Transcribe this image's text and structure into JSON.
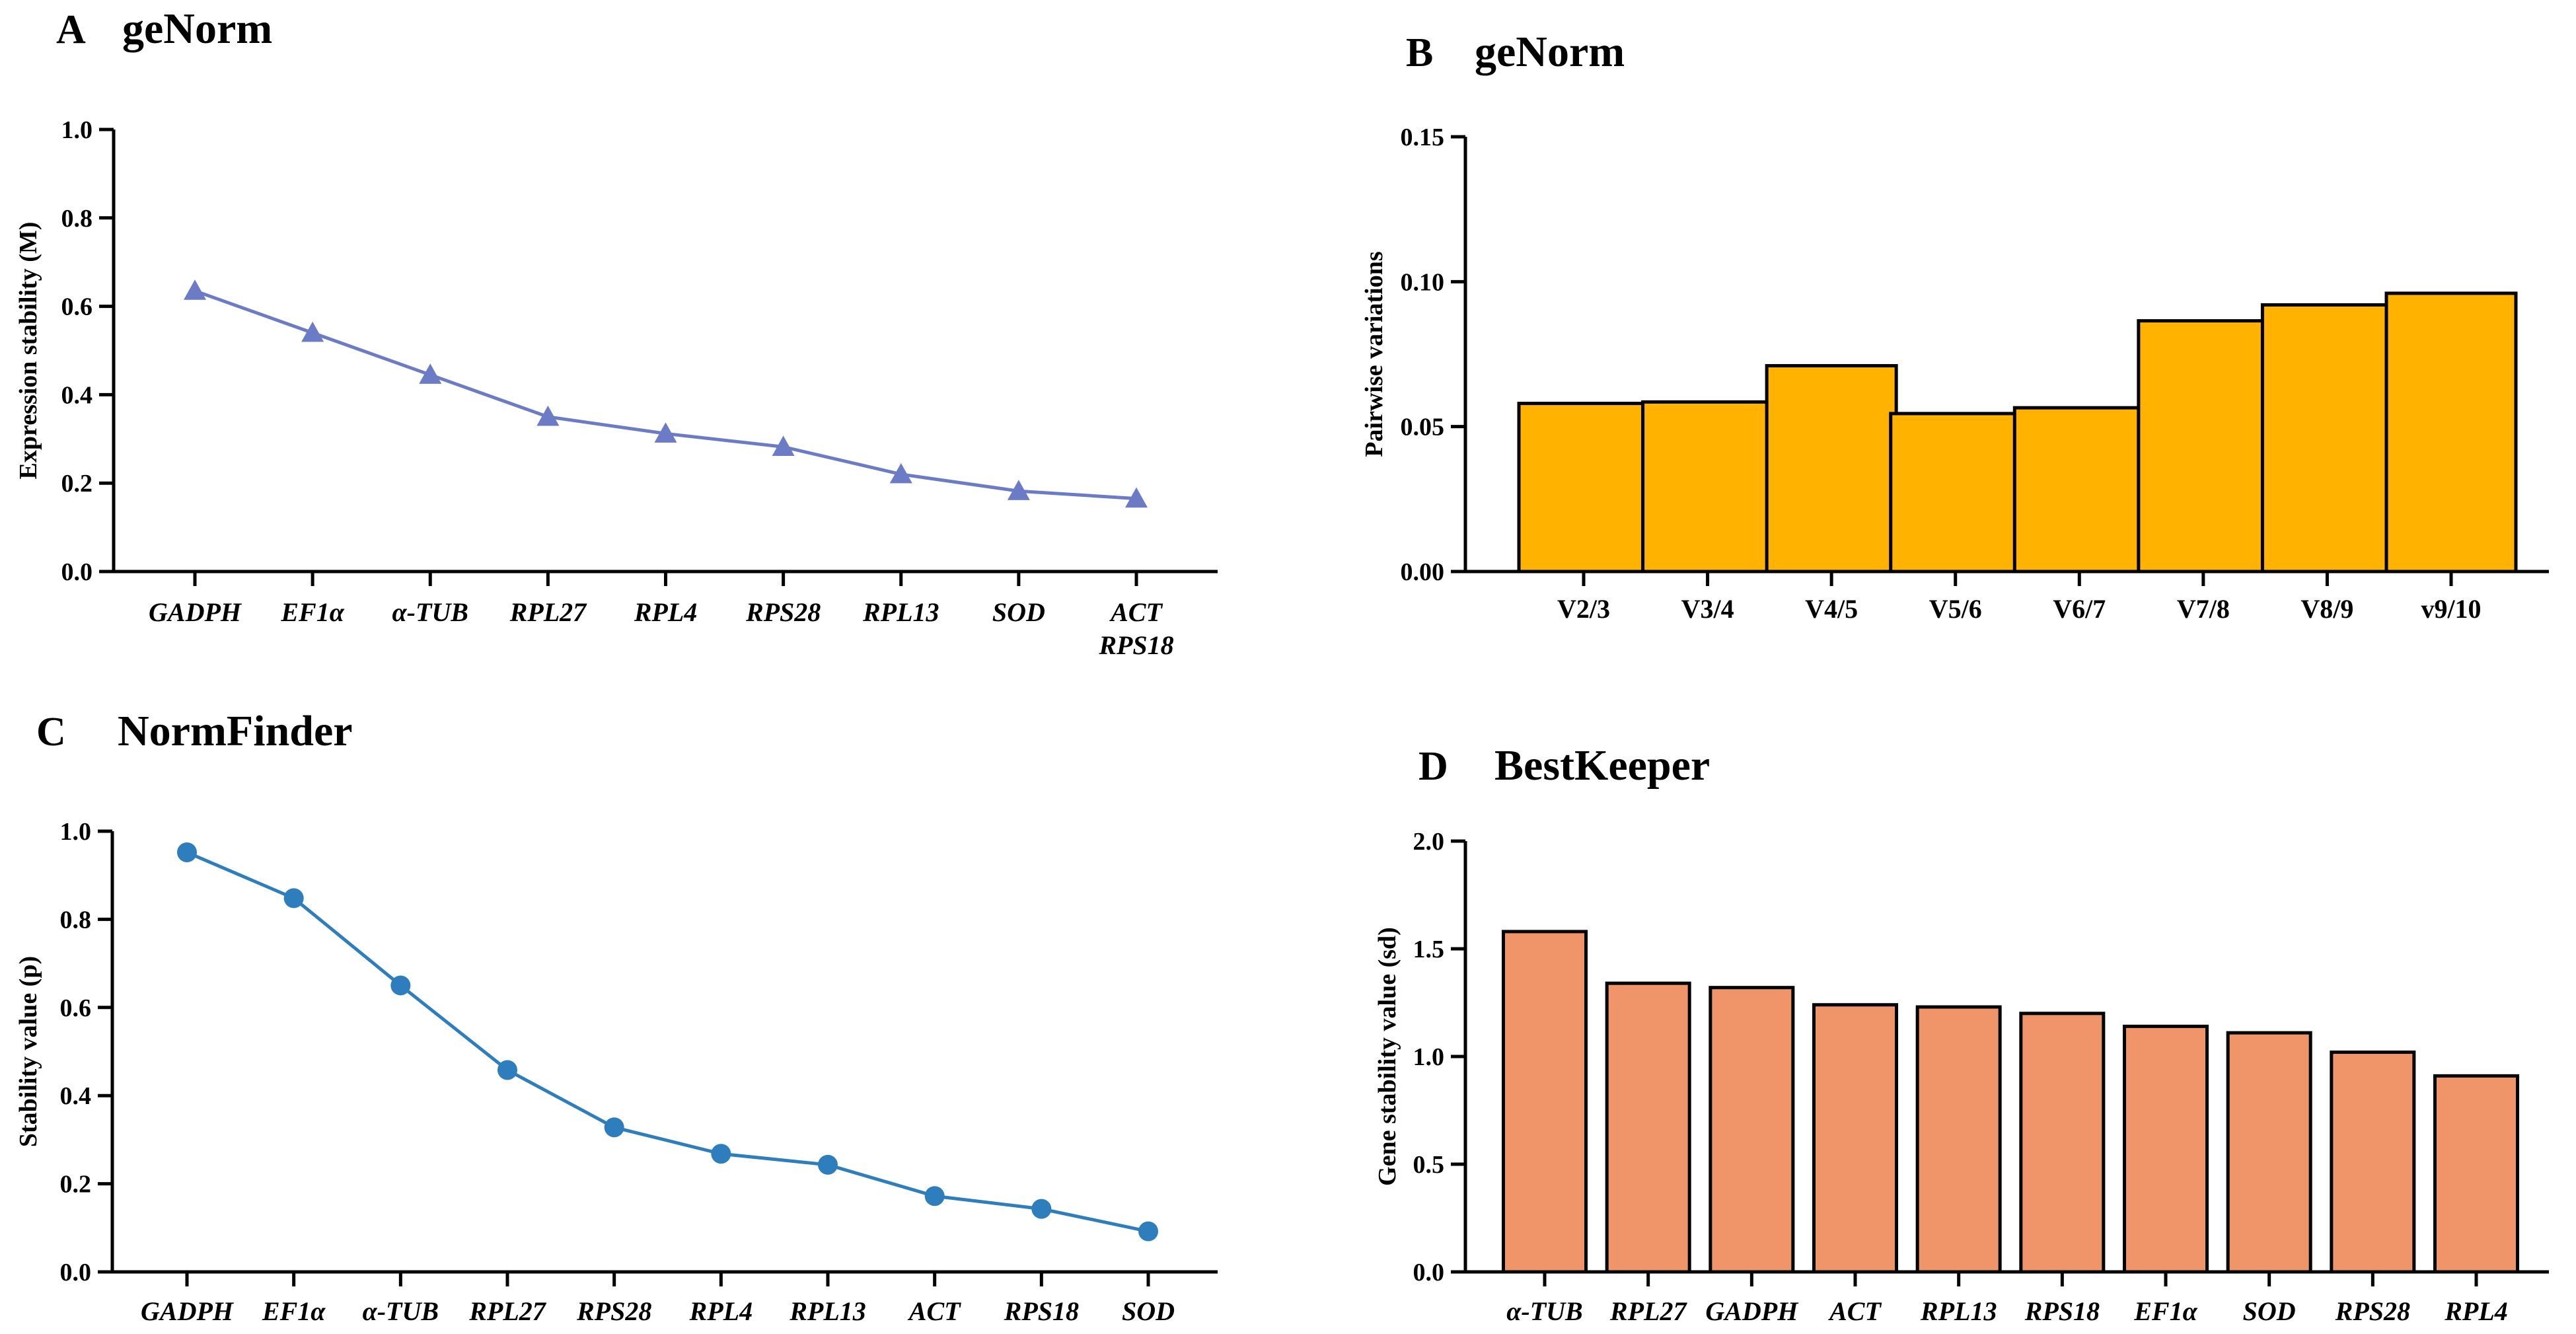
{
  "chart_data": [
    {
      "panel": "A",
      "title": "geNorm",
      "type": "line",
      "marker": "triangle",
      "color": "#6B7BC6",
      "categories": [
        [
          "GADPH"
        ],
        [
          "EF1α"
        ],
        [
          "α-TUB"
        ],
        [
          "RPL27"
        ],
        [
          "RPL4"
        ],
        [
          "RPS28"
        ],
        [
          "RPL13"
        ],
        [
          "SOD"
        ],
        [
          "ACT",
          "RPS18"
        ]
      ],
      "values": [
        0.635,
        0.54,
        0.445,
        0.35,
        0.312,
        0.282,
        0.22,
        0.182,
        0.165
      ],
      "ylabel": "Expression stability (M)",
      "xlabel": "",
      "ylim": [
        0,
        1.0
      ],
      "yticks": [
        "0.0",
        "0.2",
        "0.4",
        "0.6",
        "0.8",
        "1.0"
      ],
      "italic_categories": true
    },
    {
      "panel": "B",
      "title": "geNorm",
      "type": "bar",
      "color": "#FFB300",
      "categories": [
        [
          "V2/3"
        ],
        [
          "V3/4"
        ],
        [
          "V4/5"
        ],
        [
          "V5/6"
        ],
        [
          "V6/7"
        ],
        [
          "V7/8"
        ],
        [
          "V8/9"
        ],
        [
          "v9/10"
        ]
      ],
      "values": [
        0.058,
        0.0585,
        0.071,
        0.0545,
        0.0565,
        0.0865,
        0.092,
        0.096
      ],
      "ylabel": "Pairwise variations",
      "xlabel": "",
      "ylim": [
        0,
        0.15
      ],
      "yticks": [
        "0.00",
        "0.05",
        "0.10",
        "0.15"
      ],
      "italic_categories": false
    },
    {
      "panel": "C",
      "title": "NormFinder",
      "type": "line",
      "marker": "circle",
      "color": "#2E7DBC",
      "categories": [
        [
          "GADPH"
        ],
        [
          "EF1α"
        ],
        [
          "α-TUB"
        ],
        [
          "RPL27"
        ],
        [
          "RPS28"
        ],
        [
          "RPL4"
        ],
        [
          "RPL13"
        ],
        [
          "ACT"
        ],
        [
          "RPS18"
        ],
        [
          "SOD"
        ]
      ],
      "values": [
        0.952,
        0.848,
        0.65,
        0.458,
        0.328,
        0.268,
        0.243,
        0.172,
        0.143,
        0.092
      ],
      "ylabel": "Stability value (p)",
      "xlabel": "",
      "ylim": [
        0,
        1.0
      ],
      "yticks": [
        "0.0",
        "0.2",
        "0.4",
        "0.6",
        "0.8",
        "1.0"
      ],
      "italic_categories": true
    },
    {
      "panel": "D",
      "title": "BestKeeper",
      "type": "bar",
      "color": "#F0956A",
      "categories": [
        [
          "α-TUB"
        ],
        [
          "RPL27"
        ],
        [
          "GADPH"
        ],
        [
          "ACT"
        ],
        [
          "RPL13"
        ],
        [
          "RPS18"
        ],
        [
          "EF1α"
        ],
        [
          "SOD"
        ],
        [
          "RPS28"
        ],
        [
          "RPL4"
        ]
      ],
      "values": [
        1.58,
        1.34,
        1.32,
        1.24,
        1.23,
        1.2,
        1.14,
        1.11,
        1.02,
        0.91
      ],
      "ylabel": "Gene stability value (sd)",
      "xlabel": "",
      "ylim": [
        0,
        2.0
      ],
      "yticks": [
        "0.0",
        "0.5",
        "1.0",
        "1.5",
        "2.0"
      ],
      "italic_categories": true
    }
  ]
}
